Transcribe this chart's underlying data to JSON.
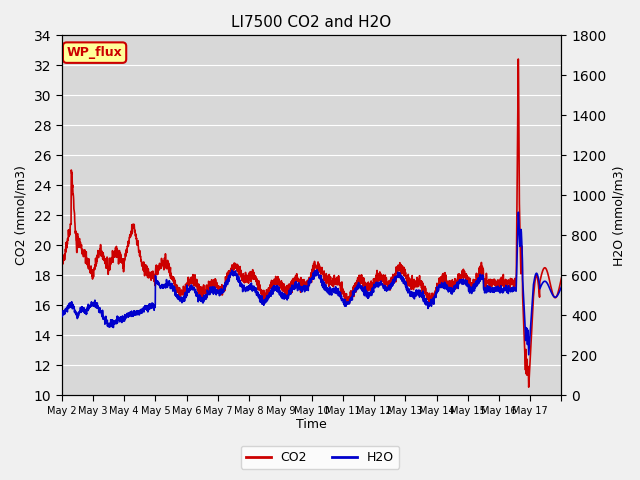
{
  "title": "LI7500 CO2 and H2O",
  "xlabel": "Time",
  "ylabel_left": "CO2 (mmol/m3)",
  "ylabel_right": "H2O (mmol/m3)",
  "ylim_left": [
    10,
    34
  ],
  "ylim_right": [
    0,
    1800
  ],
  "yticks_left": [
    10,
    12,
    14,
    16,
    18,
    20,
    22,
    24,
    26,
    28,
    30,
    32,
    34
  ],
  "yticks_right": [
    0,
    200,
    400,
    600,
    800,
    1000,
    1200,
    1400,
    1600,
    1800
  ],
  "xtick_positions": [
    0,
    1,
    2,
    3,
    4,
    5,
    6,
    7,
    8,
    9,
    10,
    11,
    12,
    13,
    14,
    15,
    16
  ],
  "xtick_labels": [
    "May 2",
    "May 3",
    "May 4",
    "May 5",
    "May 6",
    "May 7",
    "May 8",
    "May 9",
    "May 10",
    "May 11",
    "May 12",
    "May 13",
    "May 14",
    "May 15",
    "May 16",
    "May 17",
    ""
  ],
  "n_days": 16,
  "co2_color": "#cc0000",
  "h2o_color": "#0000cc",
  "fig_bg_color": "#f0f0f0",
  "plot_bg_color": "#d8d8d8",
  "annotation_text": "WP_flux",
  "annotation_bg": "#ffff99",
  "annotation_border": "#cc0000",
  "legend_co2": "CO2",
  "legend_h2o": "H2O",
  "linewidth": 1.2
}
